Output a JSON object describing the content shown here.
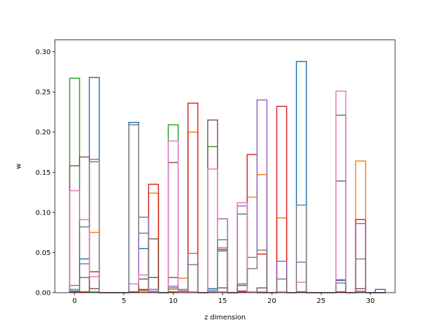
{
  "chart_data": {
    "type": "bar",
    "style": "step-outline",
    "xlabel": "z dimension",
    "ylabel": "w",
    "xlim": [
      -2.0,
      32.5
    ],
    "ylim": [
      0.0,
      0.315
    ],
    "xticks": [
      "0",
      "5",
      "10",
      "15",
      "20",
      "25",
      "30"
    ],
    "xtick_values": [
      0,
      5,
      10,
      15,
      20,
      25,
      30
    ],
    "yticks": [
      "0.00",
      "0.05",
      "0.10",
      "0.15",
      "0.20",
      "0.25",
      "0.30"
    ],
    "ytick_values": [
      0.0,
      0.05,
      0.1,
      0.15,
      0.2,
      0.25,
      0.3
    ],
    "grid": false,
    "bin_width": 1,
    "x": [
      0,
      1,
      2,
      3,
      4,
      5,
      6,
      7,
      8,
      9,
      10,
      11,
      12,
      13,
      14,
      15,
      16,
      17,
      18,
      19,
      20,
      21,
      22,
      23,
      24,
      25,
      26,
      27,
      28,
      29,
      30,
      31
    ],
    "series": [
      {
        "color": "#1f77b4",
        "values": [
          0.002,
          0.042,
          0.268,
          0,
          0,
          0,
          0.212,
          0.055,
          0.019,
          0,
          0.019,
          0.002,
          0.001,
          0,
          0.005,
          0.052,
          0,
          0.009,
          0.001,
          0,
          0,
          0.001,
          0,
          0.288,
          0,
          0,
          0,
          0.016,
          0,
          0.001,
          0,
          0.004
        ]
      },
      {
        "color": "#ff7f0e",
        "values": [
          0.001,
          0.001,
          0.075,
          0,
          0,
          0,
          0.001,
          0.001,
          0.124,
          0,
          0.004,
          0.018,
          0.2,
          0,
          0.001,
          0.056,
          0,
          0.001,
          0.119,
          0.147,
          0,
          0.093,
          0,
          0.001,
          0,
          0,
          0,
          0.001,
          0,
          0.164,
          0,
          0
        ]
      },
      {
        "color": "#2ca02c",
        "values": [
          0.267,
          0.019,
          0.001,
          0,
          0,
          0,
          0.001,
          0.004,
          0.001,
          0,
          0.209,
          0.001,
          0.001,
          0,
          0.182,
          0.001,
          0,
          0.098,
          0.001,
          0.001,
          0,
          0.001,
          0,
          0.001,
          0,
          0,
          0,
          0.221,
          0,
          0.001,
          0,
          0
        ]
      },
      {
        "color": "#d62728",
        "values": [
          0.001,
          0.001,
          0.026,
          0,
          0,
          0,
          0.001,
          0.003,
          0.135,
          0,
          0.001,
          0.001,
          0.236,
          0,
          0.001,
          0.054,
          0,
          0.001,
          0.172,
          0.048,
          0,
          0.232,
          0,
          0.001,
          0,
          0,
          0,
          0.001,
          0,
          0.091,
          0,
          0
        ]
      },
      {
        "color": "#9467bd",
        "values": [
          0.009,
          0.036,
          0.166,
          0,
          0,
          0,
          0.001,
          0.094,
          0.001,
          0,
          0.008,
          0.001,
          0.049,
          0,
          0.001,
          0.092,
          0,
          0.108,
          0.044,
          0.24,
          0,
          0.039,
          0,
          0.038,
          0,
          0,
          0,
          0.015,
          0,
          0.086,
          0,
          0
        ]
      },
      {
        "color": "#8c564b",
        "values": [
          0.158,
          0.169,
          0.005,
          0,
          0,
          0,
          0.001,
          0.017,
          0.067,
          0,
          0.162,
          0.002,
          0.001,
          0,
          0.215,
          0.006,
          0,
          0.002,
          0.001,
          0.006,
          0,
          0.001,
          0,
          0.001,
          0,
          0,
          0,
          0.139,
          0,
          0.005,
          0,
          0
        ]
      },
      {
        "color": "#e377c2",
        "values": [
          0.127,
          0.091,
          0.02,
          0,
          0,
          0,
          0.011,
          0.022,
          0.002,
          0,
          0.189,
          0.001,
          0.001,
          0,
          0.154,
          0.001,
          0,
          0.112,
          0.001,
          0.001,
          0,
          0.001,
          0,
          0.013,
          0,
          0,
          0,
          0.251,
          0,
          0.002,
          0,
          0
        ]
      },
      {
        "color": "#7f7f7f",
        "values": [
          0.004,
          0.082,
          0.163,
          0,
          0,
          0,
          0.209,
          0.074,
          0.004,
          0,
          0.006,
          0.004,
          0.035,
          0,
          0.003,
          0.066,
          0,
          0.011,
          0.03,
          0.053,
          0,
          0.017,
          0,
          0.109,
          0,
          0,
          0,
          0.012,
          0,
          0.042,
          0,
          0
        ]
      }
    ]
  }
}
